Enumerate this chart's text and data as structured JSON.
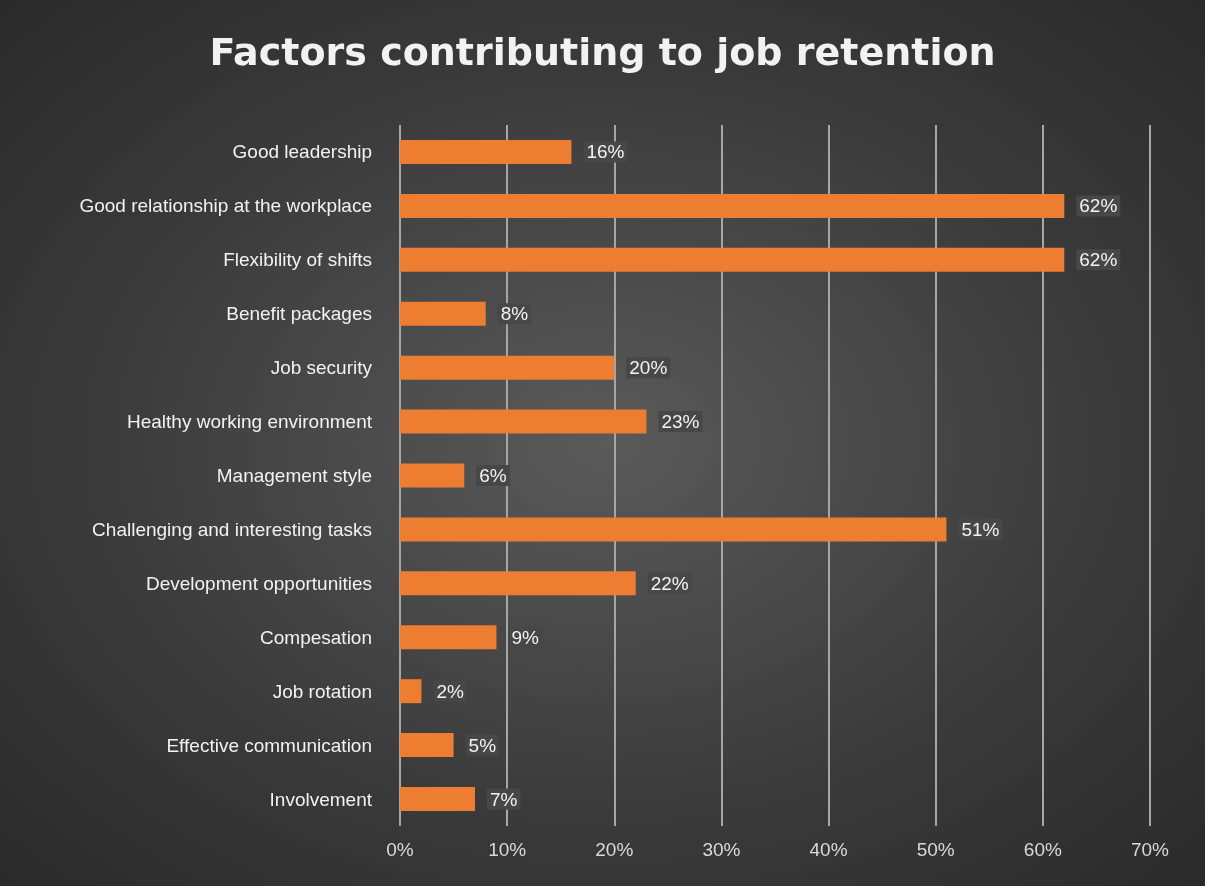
{
  "chart_data": {
    "type": "bar",
    "orientation": "horizontal",
    "title": "Factors contributing to job retention",
    "categories": [
      "Good leadership",
      "Good relationship at the workplace",
      "Flexibility of shifts",
      "Benefit packages",
      "Job security",
      "Healthy working environment",
      "Management style",
      "Challenging and interesting tasks",
      "Development opportunities",
      "Compesation",
      "Job rotation",
      "Effective communication",
      "Involvement"
    ],
    "values": [
      16,
      62,
      62,
      8,
      20,
      23,
      6,
      51,
      22,
      9,
      2,
      5,
      7
    ],
    "value_labels": [
      "16%",
      "62%",
      "62%",
      "8%",
      "20%",
      "23%",
      "6%",
      "51%",
      "22%",
      "9%",
      "2%",
      "5%",
      "7%"
    ],
    "color": "#ed7d31",
    "xlim": [
      0,
      70
    ],
    "xticks": [
      {
        "value": 0,
        "label": "0%"
      },
      {
        "value": 10,
        "label": "10%"
      },
      {
        "value": 20,
        "label": "20%"
      },
      {
        "value": 30,
        "label": "30%"
      },
      {
        "value": 40,
        "label": "40%"
      },
      {
        "value": 50,
        "label": "50%"
      },
      {
        "value": 60,
        "label": "60%"
      },
      {
        "value": 70,
        "label": "70%"
      }
    ],
    "grid": "x"
  }
}
